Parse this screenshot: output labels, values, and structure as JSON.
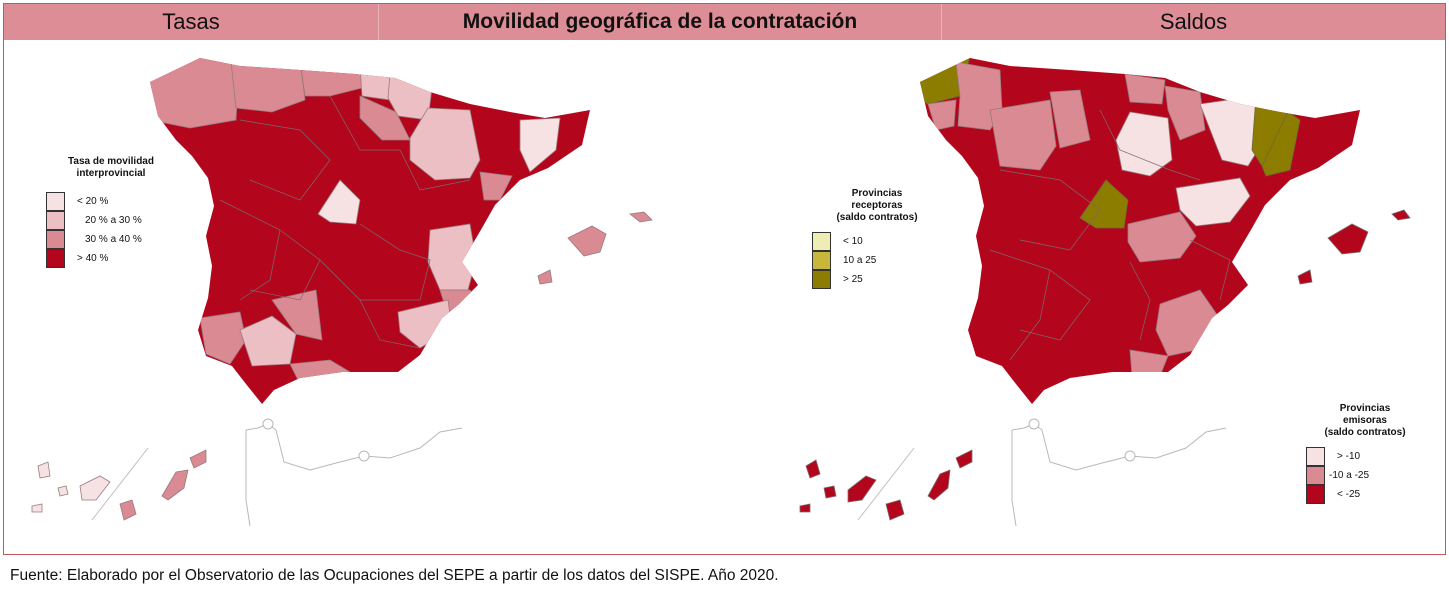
{
  "header": {
    "left_title": "Tasas",
    "main_title": "Movilidad geográfica de la contratación",
    "right_title": "Saldos"
  },
  "left_legend": {
    "title_line1": "Tasa de movilidad",
    "title_line2": "interprovincial",
    "items": [
      {
        "label": "< 20 %",
        "color": "#f6e1e3"
      },
      {
        "label": "20 % a 30 %",
        "color": "#ebbfc3"
      },
      {
        "label": "30 % a 40 %",
        "color": "#d98a92"
      },
      {
        "label": "> 40 %",
        "color": "#b3061d"
      }
    ]
  },
  "receptoras_legend": {
    "title_line1": "Provincias",
    "title_line2": "receptoras",
    "title_line3": "(saldo contratos)",
    "items": [
      {
        "label": "< 10",
        "color": "#f0edb4"
      },
      {
        "label": "10 a 25",
        "color": "#c7b73a"
      },
      {
        "label": "> 25",
        "color": "#8c7c00"
      }
    ]
  },
  "emisoras_legend": {
    "title_line1": "Provincias",
    "title_line2": "emisoras",
    "title_line3": "(saldo contratos)",
    "items": [
      {
        "label": "> -10",
        "color": "#f6e1e3"
      },
      {
        "label": "-10 a -25",
        "color": "#d98a92"
      },
      {
        "label": "< -25",
        "color": "#b3061d"
      }
    ]
  },
  "colors": {
    "red": "#b3061d",
    "pink_mid": "#d98a92",
    "pink_light": "#ebbfc3",
    "pink_pale": "#f6e1e3",
    "olive": "#8c7c00",
    "border": "#c8545f"
  },
  "footer": {
    "source": "Fuente: Elaborado por el Observatorio de las Ocupaciones del SEPE a partir de los datos del SISPE. Año 2020."
  }
}
